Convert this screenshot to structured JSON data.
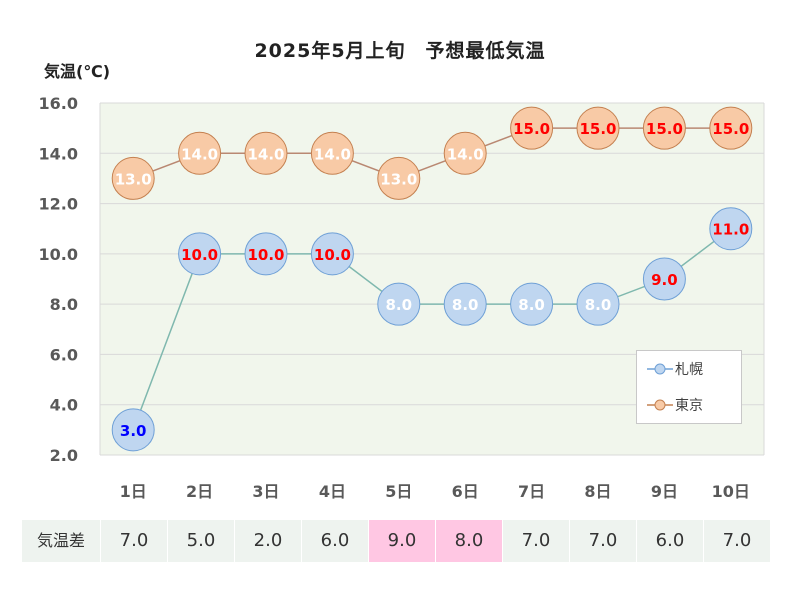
{
  "title": "2025年5月上旬　予想最低気温",
  "y_axis_label": "気温(℃)",
  "colors": {
    "plot_bg": "#f1f6ec",
    "sapporo_fill": "#bfd6f0",
    "sapporo_stroke": "#6fa0d6",
    "sapporo_line": "#7fb8ae",
    "tokyo_fill": "#f8caa6",
    "tokyo_stroke": "#c48050",
    "tokyo_line": "#b98872",
    "label_red": "#ff0000",
    "label_white": "#ffffff",
    "label_blue": "#0000ff",
    "highlight": "#ffc7e3"
  },
  "chart_data": {
    "type": "line",
    "title": "2025年5月上旬　予想最低気温",
    "ylabel": "気温(℃)",
    "xlabel": "",
    "categories": [
      "1日",
      "2日",
      "3日",
      "4日",
      "5日",
      "6日",
      "7日",
      "8日",
      "9日",
      "10日"
    ],
    "ylim": [
      2.0,
      16.0
    ],
    "yticks": [
      "2.0",
      "4.0",
      "6.0",
      "8.0",
      "10.0",
      "12.0",
      "14.0",
      "16.0"
    ],
    "grid": true,
    "legend": "bottom-right",
    "series": [
      {
        "name": "札幌",
        "values": [
          3.0,
          10.0,
          10.0,
          10.0,
          8.0,
          8.0,
          8.0,
          8.0,
          9.0,
          11.0
        ],
        "labels": [
          "3.0",
          "10.0",
          "10.0",
          "10.0",
          "8.0",
          "8.0",
          "8.0",
          "8.0",
          "9.0",
          "11.0"
        ],
        "label_colors": [
          "blue",
          "red",
          "red",
          "red",
          "white",
          "white",
          "white",
          "white",
          "red",
          "red"
        ]
      },
      {
        "name": "東京",
        "values": [
          13.0,
          14.0,
          14.0,
          14.0,
          13.0,
          14.0,
          15.0,
          15.0,
          15.0,
          15.0
        ],
        "labels": [
          "13.0",
          "14.0",
          "14.0",
          "14.0",
          "13.0",
          "14.0",
          "15.0",
          "15.0",
          "15.0",
          "15.0"
        ],
        "label_colors": [
          "white",
          "white",
          "white",
          "white",
          "white",
          "white",
          "red",
          "red",
          "red",
          "red"
        ]
      }
    ]
  },
  "legend": {
    "items": [
      {
        "name": "札幌",
        "color": "#6fa0d6",
        "fill": "#bfd6f0"
      },
      {
        "name": "東京",
        "color": "#c48050",
        "fill": "#f8caa6"
      }
    ]
  },
  "diff_table": {
    "header": "気温差",
    "values": [
      "7.0",
      "5.0",
      "2.0",
      "6.0",
      "9.0",
      "8.0",
      "7.0",
      "7.0",
      "6.0",
      "7.0"
    ],
    "highlighted": [
      4,
      5
    ]
  }
}
